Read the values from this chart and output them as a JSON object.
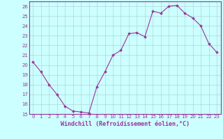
{
  "x": [
    0,
    1,
    2,
    3,
    4,
    5,
    6,
    7,
    8,
    9,
    10,
    11,
    12,
    13,
    14,
    15,
    16,
    17,
    18,
    19,
    20,
    21,
    22,
    23
  ],
  "y": [
    20.3,
    19.3,
    18.0,
    17.0,
    15.8,
    15.3,
    15.2,
    15.1,
    17.8,
    19.3,
    21.0,
    21.5,
    23.2,
    23.3,
    22.9,
    25.5,
    25.3,
    26.0,
    26.1,
    25.3,
    24.8,
    24.0,
    22.2,
    21.3
  ],
  "line_color": "#993399",
  "marker": "D",
  "marker_size": 1.8,
  "line_width": 0.8,
  "bg_color": "#ccffff",
  "grid_color": "#aacccc",
  "xlabel": "Windchill (Refroidissement éolien,°C)",
  "xlim": [
    -0.5,
    23.5
  ],
  "ylim": [
    15,
    26.5
  ],
  "yticks": [
    15,
    16,
    17,
    18,
    19,
    20,
    21,
    22,
    23,
    24,
    25,
    26
  ],
  "xticks": [
    0,
    1,
    2,
    3,
    4,
    5,
    6,
    7,
    8,
    9,
    10,
    11,
    12,
    13,
    14,
    15,
    16,
    17,
    18,
    19,
    20,
    21,
    22,
    23
  ],
  "xlabel_fontsize": 6.0,
  "tick_fontsize": 5.0,
  "tick_color": "#993399",
  "label_color": "#993399",
  "spine_color": "#993399"
}
